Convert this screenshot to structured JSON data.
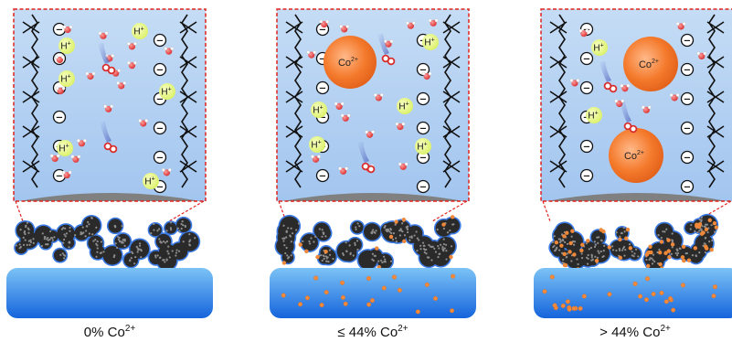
{
  "panels": [
    {
      "caption_text": "0% Co",
      "caption_sup": "2+",
      "h_count": 6,
      "co_count": 0,
      "water_clusters": 18,
      "electrolyte_dots": 0
    },
    {
      "caption_text": "≤ 44% Co",
      "caption_sup": "2+",
      "h_count": 5,
      "co_count": 1,
      "water_clusters": 16,
      "electrolyte_dots": 20
    },
    {
      "caption_text": "> 44% Co",
      "caption_sup": "2+",
      "h_count": 2,
      "co_count": 2,
      "water_clusters": 8,
      "electrolyte_dots": 26
    }
  ],
  "labels": {
    "proton": "H",
    "proton_sup": "+",
    "cobalt": "Co",
    "cobalt_sup": "2+",
    "anion": "−"
  },
  "colors": {
    "zoom_border": "#e0231c",
    "zoom_fill_top": "#bcd6f3",
    "zoom_fill_bottom": "#9fc3ee",
    "proton_fill": "#e8f78a",
    "cobalt_fill": "#f47a2c",
    "water_o": "#e84a4a",
    "support_top": "#63b2f2",
    "support_bottom": "#1b6fe0",
    "catalyst": "#2a2a2a",
    "ionomer_edge": "#3b7be6"
  }
}
